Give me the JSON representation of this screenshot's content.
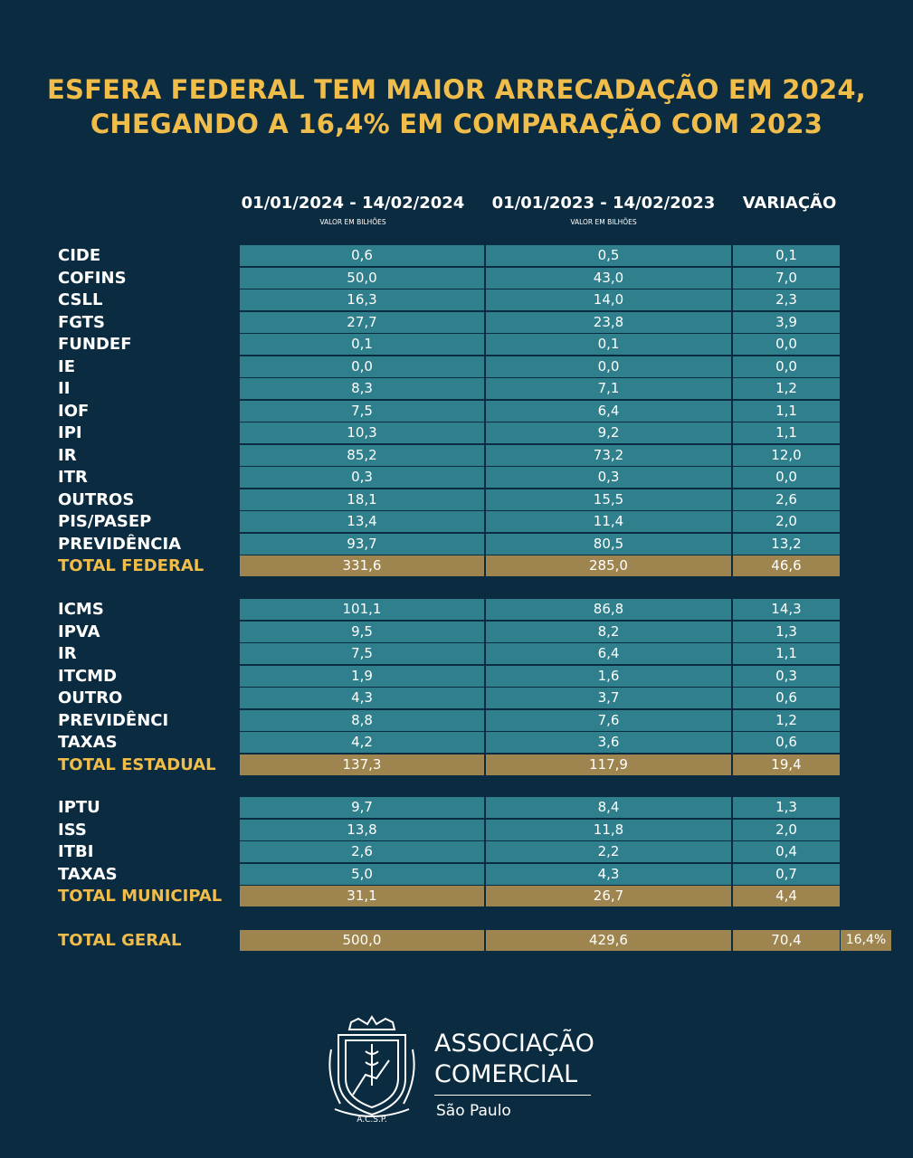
{
  "title_line1": "ESFERA FEDERAL TEM MAIOR ARRECADAÇÃO EM 2024,",
  "title_line2": "CHEGANDO A 16,4% EM COMPARAÇÃO COM 2023",
  "chart_data": {
    "type": "table",
    "columns": [
      {
        "label": "01/01/2024 - 14/02/2024",
        "sublabel": "VALOR EM BILHÕES"
      },
      {
        "label": "01/01/2023 - 14/02/2023",
        "sublabel": "VALOR EM BILHÕES"
      },
      {
        "label": "VARIAÇÃO",
        "sublabel": ""
      }
    ],
    "groups": [
      {
        "rows": [
          {
            "label": "CIDE",
            "v2024": "0,6",
            "v2023": "0,5",
            "var": "0,1"
          },
          {
            "label": "COFINS",
            "v2024": "50,0",
            "v2023": "43,0",
            "var": "7,0"
          },
          {
            "label": "CSLL",
            "v2024": "16,3",
            "v2023": "14,0",
            "var": "2,3"
          },
          {
            "label": "FGTS",
            "v2024": "27,7",
            "v2023": "23,8",
            "var": "3,9"
          },
          {
            "label": "FUNDEF",
            "v2024": "0,1",
            "v2023": "0,1",
            "var": "0,0"
          },
          {
            "label": "IE",
            "v2024": "0,0",
            "v2023": "0,0",
            "var": "0,0"
          },
          {
            "label": "II",
            "v2024": "8,3",
            "v2023": "7,1",
            "var": "1,2"
          },
          {
            "label": "IOF",
            "v2024": "7,5",
            "v2023": "6,4",
            "var": "1,1"
          },
          {
            "label": "IPI",
            "v2024": "10,3",
            "v2023": "9,2",
            "var": "1,1"
          },
          {
            "label": "IR",
            "v2024": "85,2",
            "v2023": "73,2",
            "var": "12,0"
          },
          {
            "label": "ITR",
            "v2024": "0,3",
            "v2023": "0,3",
            "var": "0,0"
          },
          {
            "label": "OUTROS",
            "v2024": "18,1",
            "v2023": "15,5",
            "var": "2,6"
          },
          {
            "label": "PIS/PASEP",
            "v2024": "13,4",
            "v2023": "11,4",
            "var": "2,0"
          },
          {
            "label": "PREVIDÊNCIA",
            "v2024": "93,7",
            "v2023": "80,5",
            "var": "13,2"
          }
        ],
        "total": {
          "label": "TOTAL FEDERAL",
          "v2024": "331,6",
          "v2023": "285,0",
          "var": "46,6"
        }
      },
      {
        "rows": [
          {
            "label": "ICMS",
            "v2024": "101,1",
            "v2023": "86,8",
            "var": "14,3"
          },
          {
            "label": "IPVA",
            "v2024": "9,5",
            "v2023": "8,2",
            "var": "1,3"
          },
          {
            "label": "IR",
            "v2024": "7,5",
            "v2023": "6,4",
            "var": "1,1"
          },
          {
            "label": "ITCMD",
            "v2024": "1,9",
            "v2023": "1,6",
            "var": "0,3"
          },
          {
            "label": "OUTRO",
            "v2024": "4,3",
            "v2023": "3,7",
            "var": "0,6"
          },
          {
            "label": "PREVIDÊNCI",
            "v2024": "8,8",
            "v2023": "7,6",
            "var": "1,2"
          },
          {
            "label": "TAXAS",
            "v2024": "4,2",
            "v2023": "3,6",
            "var": "0,6"
          }
        ],
        "total": {
          "label": "TOTAL ESTADUAL",
          "v2024": "137,3",
          "v2023": "117,9",
          "var": "19,4"
        }
      },
      {
        "rows": [
          {
            "label": "IPTU",
            "v2024": "9,7",
            "v2023": "8,4",
            "var": "1,3"
          },
          {
            "label": "ISS",
            "v2024": "13,8",
            "v2023": "11,8",
            "var": "2,0"
          },
          {
            "label": "ITBI",
            "v2024": "2,6",
            "v2023": "2,2",
            "var": "0,4"
          },
          {
            "label": "TAXAS",
            "v2024": "5,0",
            "v2023": "4,3",
            "var": "0,7"
          }
        ],
        "total": {
          "label": "TOTAL MUNICIPAL",
          "v2024": "31,1",
          "v2023": "26,7",
          "var": "4,4"
        }
      }
    ],
    "grand_total": {
      "label": "TOTAL GERAL",
      "v2024": "500,0",
      "v2023": "429,6",
      "var": "70,4",
      "pct": "16,4%"
    }
  },
  "organization": {
    "name_line1": "ASSOCIAÇÃO",
    "name_line2": "COMERCIAL",
    "city": "São Paulo",
    "logo_icon": "acsp-shield-logo-icon",
    "logo_text": "A.C.S.P."
  },
  "colors": {
    "background": "#0b2b40",
    "accent": "#f0bd4a",
    "cell": "#2f7f8d",
    "total_cell": "#9e8550"
  }
}
